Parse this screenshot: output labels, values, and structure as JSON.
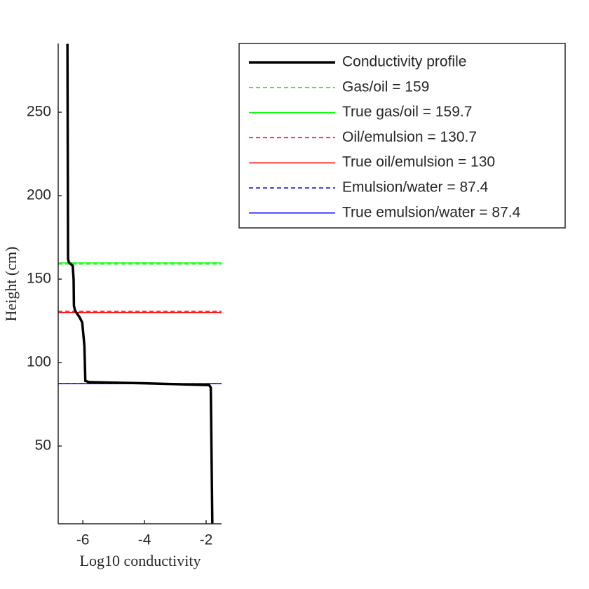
{
  "chart_data": {
    "type": "line",
    "x_label": "Log10 conductivity",
    "y_label": "Height (cm)",
    "xlim": [
      -6.8,
      -1.5
    ],
    "xticks": [
      -6,
      -4,
      -2
    ],
    "ylim": [
      3.4,
      291.2
    ],
    "yticks": [
      50,
      100,
      150,
      200,
      250
    ],
    "series": [
      {
        "name": "Conductivity profile",
        "color": "#000000",
        "x": [
          -6.5,
          -6.48,
          -6.45,
          -6.33,
          -6.3,
          -6.29,
          -6.25,
          -6.1,
          -6.02,
          -5.95,
          -5.92,
          -5.8,
          -4,
          -1.9,
          -1.85,
          -1.8
        ],
        "values": [
          291,
          162,
          160,
          158,
          150,
          134,
          131,
          127,
          124,
          110,
          89,
          88.3,
          87.6,
          86.5,
          85,
          3.4
        ]
      }
    ],
    "hlines": [
      {
        "name": "Gas/oil = 159",
        "color": "#00ff00",
        "dashed": true,
        "value": 159
      },
      {
        "name": "True gas/oil = 159.7",
        "color": "#00ff00",
        "dashed": false,
        "value": 159.7
      },
      {
        "name": "Oil/emulsion = 130.7",
        "color": "#ff0000",
        "dashed": true,
        "value": 130.7
      },
      {
        "name": "True oil/emulsion = 130",
        "color": "#ff0000",
        "dashed": false,
        "value": 130
      },
      {
        "name": "Emulsion/water = 87.4",
        "color": "#0000ff",
        "dashed": true,
        "value": 87.4
      },
      {
        "name": "True emulsion/water = 87.4",
        "color": "#0000ff",
        "dashed": false,
        "value": 87.4
      }
    ]
  }
}
